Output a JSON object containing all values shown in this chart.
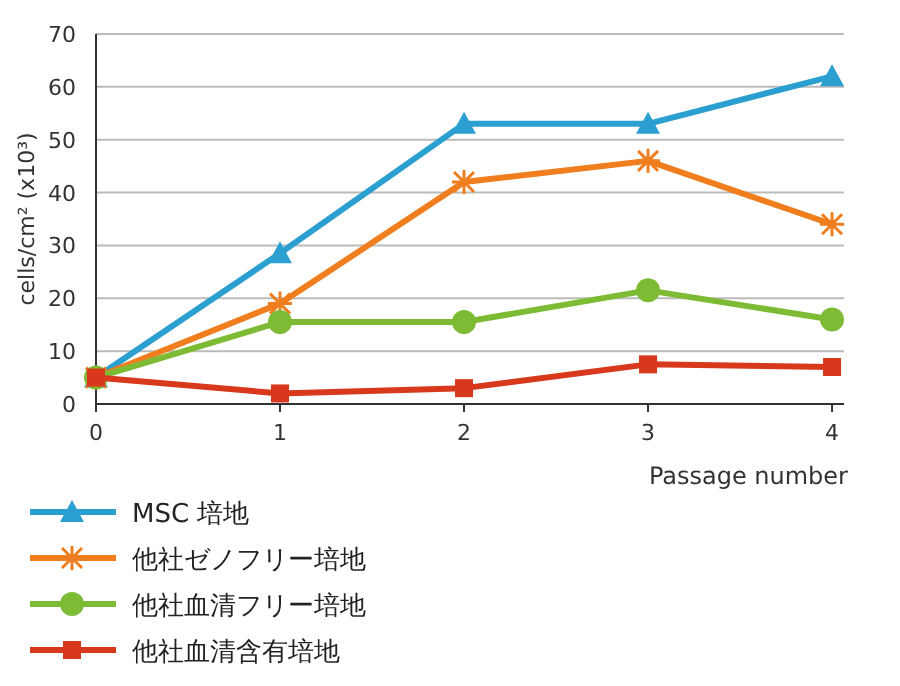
{
  "chart_data": {
    "type": "line",
    "xlabel": "Passage number",
    "ylabel": "cells/cm² (x10³)",
    "x": [
      0,
      1,
      2,
      3,
      4
    ],
    "xlim": [
      0,
      4.065
    ],
    "xticks": [
      0,
      1,
      2,
      3,
      4
    ],
    "ylim": [
      0,
      70
    ],
    "yticks": [
      0,
      10,
      20,
      30,
      40,
      50,
      60,
      70
    ],
    "grid": "y",
    "legend": "bottom",
    "series": [
      {
        "name": "MSC 培地",
        "color": "#2a9fd0",
        "marker": "triangle",
        "values": [
          5,
          28.5,
          53,
          53,
          62
        ]
      },
      {
        "name": "他社ゼノフリー培地",
        "color": "#f07d1e",
        "marker": "cross",
        "values": [
          5,
          19,
          42,
          46,
          34
        ]
      },
      {
        "name": "他社血清フリー培地",
        "color": "#7dbb34",
        "marker": "circle",
        "values": [
          5,
          15.5,
          15.5,
          21.5,
          16
        ]
      },
      {
        "name": "他社血清含有培地",
        "color": "#d8381c",
        "marker": "square",
        "values": [
          5,
          2,
          3,
          7.5,
          7
        ]
      }
    ]
  }
}
